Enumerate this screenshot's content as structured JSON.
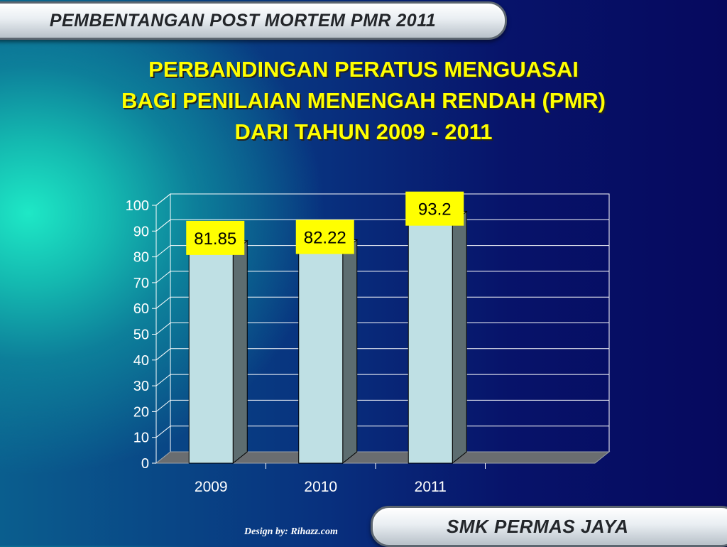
{
  "header": {
    "banner_text": "PEMBENTANGAN POST MORTEM PMR 2011"
  },
  "title_lines": [
    "PERBANDINGAN PERATUS MENGUASAI",
    "BAGI PENILAIAN MENENGAH RENDAH (PMR)",
    "DARI TAHUN 2009 - 2011"
  ],
  "footer": {
    "credit": "Design by: Rihazz.com",
    "school_name": "SMK PERMAS JAYA"
  },
  "colors": {
    "title": "#ffff00",
    "bar_front": "#bfe0e4",
    "bar_side": "#5d6d70",
    "label_box": "#ffff00"
  },
  "chart_data": {
    "type": "bar",
    "categories": [
      "2009",
      "2010",
      "2011"
    ],
    "values": [
      81.85,
      82.22,
      93.2
    ],
    "value_labels": [
      "81.85",
      "82.22",
      "93.2"
    ],
    "yticks": [
      "0",
      "10",
      "20",
      "30",
      "40",
      "50",
      "60",
      "70",
      "80",
      "90",
      "100"
    ],
    "ylim": [
      0,
      100
    ],
    "grid": true,
    "title": "",
    "xlabel": "",
    "ylabel": ""
  }
}
